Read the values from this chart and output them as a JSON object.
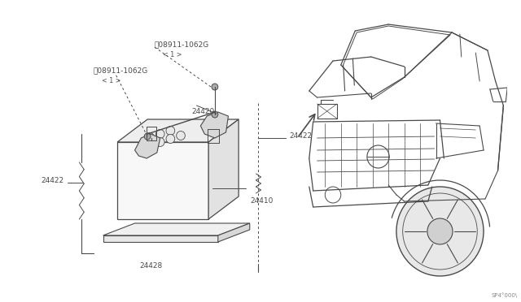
{
  "bg_color": "#ffffff",
  "line_color": "#4a4a4a",
  "fig_width": 6.4,
  "fig_height": 3.72,
  "dpi": 100,
  "watermark": "SP4/000\\",
  "labels": {
    "n1_text1": "N 08911-1062G",
    "n1_text2": "< 1 >",
    "n2_text1": "N 08911-1062G",
    "n2_text2": "< 1 >",
    "l24420": "24420",
    "l24422a": "24422",
    "l24422b": "24422",
    "l24410": "24410",
    "l24428": "24428"
  }
}
